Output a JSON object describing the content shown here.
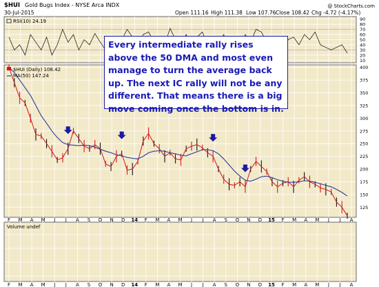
{
  "header": {
    "symbol": "$HUI",
    "name": "Gold Bugs Index - NYSE Arca INDX",
    "date": "30-Jul-2015",
    "open": "Open 111.16",
    "high": "High 111.38",
    "low": "Low 107.76",
    "close": "Close 108.42",
    "change": "Chg -4.72 (-4.17%)",
    "watermark": "@ StockCharts.com"
  },
  "annotation": "Every intermediate rally rises above the 50 DMA and most even manage to turn the average back up. The next IC rally will not be any different. That means there is a big move coming once the bottom is in.",
  "colors": {
    "panel_bg": "#f2e9c9",
    "border": "#6b6b6b",
    "price": "#d01818",
    "ma": "#2a3a9a",
    "rsi_line": "#222222",
    "arrow": "#1a1aa6",
    "grid": "#ffffff"
  },
  "chart_data": [
    {
      "type": "line",
      "panel": "RSI",
      "legend": "RSI(10) 24.19",
      "yticks": [
        10,
        20,
        30,
        40,
        50,
        60,
        70,
        80,
        90
      ],
      "ylim": [
        5,
        95
      ],
      "x": [
        0,
        10,
        20,
        30,
        40,
        50,
        60,
        70,
        80,
        90,
        100,
        110,
        120,
        130,
        140,
        150,
        160,
        170,
        180,
        190,
        200,
        210,
        220,
        230,
        240,
        250,
        260,
        270,
        280,
        290,
        300,
        310,
        320,
        330,
        340,
        350,
        360,
        370,
        380,
        390,
        400,
        410,
        420,
        430,
        440,
        450,
        460,
        470,
        480,
        490,
        500,
        510,
        520,
        530,
        540,
        550,
        560,
        570,
        580,
        590,
        600,
        610,
        620,
        630
      ],
      "values": [
        55,
        30,
        40,
        20,
        60,
        45,
        30,
        55,
        20,
        40,
        70,
        45,
        60,
        30,
        50,
        40,
        62,
        45,
        30,
        50,
        35,
        50,
        70,
        55,
        40,
        60,
        65,
        45,
        55,
        40,
        72,
        50,
        40,
        60,
        35,
        55,
        65,
        40,
        55,
        40,
        60,
        30,
        50,
        35,
        60,
        45,
        70,
        65,
        45,
        40,
        55,
        35,
        50,
        55,
        40,
        60,
        50,
        65,
        40,
        35,
        30,
        35,
        40,
        24
      ]
    },
    {
      "type": "line",
      "panel": "price",
      "legend_price": "$HUI (Daily) 108.42",
      "legend_ma": "MA(50) 147.24",
      "xlabels": [
        "F",
        "M",
        "A",
        "M",
        "J",
        "J",
        "A",
        "S",
        "O",
        "N",
        "D",
        "14",
        "F",
        "M",
        "A",
        "M",
        "J",
        "J",
        "A",
        "S",
        "O",
        "N",
        "D",
        "15",
        "F",
        "M",
        "A",
        "M",
        "J",
        "J",
        "A"
      ],
      "yticks": [
        125,
        150,
        175,
        200,
        225,
        250,
        275,
        300,
        325,
        350,
        375,
        400
      ],
      "ylim": [
        105,
        405
      ],
      "x": [
        0,
        10,
        20,
        30,
        40,
        50,
        60,
        70,
        80,
        90,
        100,
        110,
        120,
        130,
        140,
        150,
        160,
        170,
        180,
        190,
        200,
        210,
        220,
        230,
        240,
        250,
        260,
        270,
        280,
        290,
        300,
        310,
        320,
        330,
        340,
        350,
        360,
        370,
        380,
        390,
        400,
        410,
        420,
        430,
        440,
        450,
        460,
        470,
        480,
        490,
        500,
        510,
        520,
        530,
        540,
        550,
        560,
        570,
        580,
        590,
        600,
        610,
        620,
        630
      ],
      "price": [
        400,
        370,
        340,
        330,
        300,
        268,
        265,
        250,
        235,
        218,
        222,
        240,
        275,
        260,
        245,
        240,
        248,
        240,
        210,
        205,
        225,
        230,
        198,
        200,
        215,
        255,
        270,
        250,
        240,
        225,
        232,
        220,
        218,
        240,
        245,
        248,
        242,
        232,
        225,
        200,
        180,
        170,
        168,
        175,
        165,
        200,
        215,
        205,
        195,
        175,
        165,
        172,
        175,
        165,
        178,
        185,
        175,
        170,
        163,
        160,
        155,
        135,
        125,
        108
      ],
      "ma": [
        400,
        390,
        375,
        360,
        345,
        325,
        305,
        290,
        275,
        262,
        252,
        248,
        247,
        246,
        247,
        246,
        243,
        239,
        235,
        232,
        228,
        226,
        223,
        221,
        220,
        225,
        232,
        235,
        236,
        235,
        232,
        230,
        227,
        226,
        230,
        234,
        238,
        238,
        236,
        230,
        220,
        208,
        196,
        186,
        178,
        176,
        180,
        185,
        186,
        183,
        179,
        176,
        174,
        174,
        175,
        177,
        176,
        174,
        171,
        168,
        165,
        160,
        154,
        147
      ],
      "arrows_at_x": [
        110,
        210,
        275,
        380,
        440
      ]
    },
    {
      "type": "bar",
      "panel": "volume",
      "legend": "Volume undef",
      "values": []
    }
  ]
}
